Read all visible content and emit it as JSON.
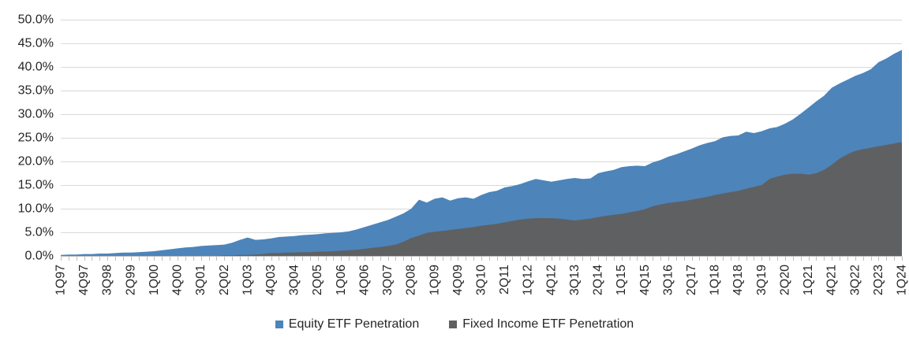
{
  "chart_data": {
    "type": "area",
    "stacking": "overlay",
    "title": "",
    "xlabel": "",
    "ylabel": "",
    "ylim": [
      0,
      50
    ],
    "ytick_step": 5,
    "y_tick_labels": [
      "0.0%",
      "5.0%",
      "10.0%",
      "15.0%",
      "20.0%",
      "25.0%",
      "30.0%",
      "35.0%",
      "40.0%",
      "45.0%",
      "50.0%"
    ],
    "x_label_every_n": 3,
    "grid": true,
    "legend_position": "bottom-center",
    "gridline_color": "#D9D9D9",
    "axis_line_color": "#BFBFBF",
    "tick_color": "#BFBFBF",
    "text_color": "#262626",
    "x": [
      "1Q97",
      "2Q97",
      "3Q97",
      "4Q97",
      "1Q98",
      "2Q98",
      "3Q98",
      "4Q98",
      "1Q99",
      "2Q99",
      "3Q99",
      "4Q99",
      "1Q00",
      "2Q00",
      "3Q00",
      "4Q00",
      "1Q01",
      "2Q01",
      "3Q01",
      "4Q01",
      "1Q02",
      "2Q02",
      "3Q02",
      "4Q02",
      "1Q03",
      "2Q03",
      "3Q03",
      "4Q03",
      "1Q04",
      "2Q04",
      "3Q04",
      "4Q04",
      "1Q05",
      "2Q05",
      "3Q05",
      "4Q05",
      "1Q06",
      "2Q06",
      "3Q06",
      "4Q06",
      "1Q07",
      "2Q07",
      "3Q07",
      "4Q07",
      "1Q08",
      "2Q08",
      "3Q08",
      "4Q08",
      "1Q09",
      "2Q09",
      "3Q09",
      "4Q09",
      "1Q10",
      "2Q10",
      "3Q10",
      "4Q10",
      "1Q11",
      "2Q11",
      "3Q11",
      "4Q11",
      "1Q12",
      "2Q12",
      "3Q12",
      "4Q12",
      "1Q13",
      "2Q13",
      "3Q13",
      "4Q13",
      "1Q14",
      "2Q14",
      "3Q14",
      "4Q14",
      "1Q15",
      "2Q15",
      "3Q15",
      "4Q15",
      "1Q16",
      "2Q16",
      "3Q16",
      "4Q16",
      "1Q17",
      "2Q17",
      "3Q17",
      "4Q17",
      "1Q18",
      "2Q18",
      "3Q18",
      "4Q18",
      "1Q19",
      "2Q19",
      "3Q19",
      "4Q19",
      "1Q20",
      "2Q20",
      "3Q20",
      "4Q20",
      "1Q21",
      "2Q21",
      "3Q21",
      "4Q21",
      "1Q22",
      "2Q22",
      "3Q22",
      "4Q22",
      "1Q23",
      "2Q23",
      "3Q23",
      "4Q23",
      "1Q24"
    ],
    "series": [
      {
        "name": "Equity ETF Penetration",
        "color": "#4D84BA",
        "values": [
          0.2,
          0.3,
          0.3,
          0.4,
          0.4,
          0.5,
          0.5,
          0.6,
          0.7,
          0.7,
          0.8,
          0.9,
          1.0,
          1.2,
          1.4,
          1.6,
          1.8,
          1.9,
          2.1,
          2.2,
          2.3,
          2.4,
          2.8,
          3.4,
          3.9,
          3.4,
          3.5,
          3.7,
          4.0,
          4.1,
          4.2,
          4.4,
          4.5,
          4.6,
          4.8,
          4.9,
          5.0,
          5.2,
          5.6,
          6.1,
          6.6,
          7.1,
          7.6,
          8.3,
          9.0,
          10.0,
          11.9,
          11.3,
          12.1,
          12.4,
          11.7,
          12.2,
          12.4,
          12.1,
          12.9,
          13.5,
          13.8,
          14.5,
          14.8,
          15.2,
          15.8,
          16.3,
          16.0,
          15.7,
          16.0,
          16.3,
          16.5,
          16.3,
          16.4,
          17.5,
          17.9,
          18.2,
          18.8,
          19.0,
          19.1,
          19.0,
          19.8,
          20.3,
          21.0,
          21.5,
          22.1,
          22.7,
          23.4,
          23.9,
          24.3,
          25.1,
          25.4,
          25.5,
          26.3,
          26.0,
          26.4,
          27.0,
          27.3,
          28.0,
          28.9,
          30.1,
          31.4,
          32.7,
          33.9,
          35.6,
          36.5,
          37.3,
          38.1,
          38.7,
          39.5,
          41.0,
          41.8,
          42.8,
          43.6
        ]
      },
      {
        "name": "Fixed Income ETF Penetration",
        "color": "#5F6062",
        "values": [
          0,
          0,
          0,
          0,
          0,
          0,
          0,
          0,
          0,
          0,
          0,
          0,
          0,
          0,
          0,
          0,
          0,
          0,
          0,
          0,
          0,
          0.1,
          0.1,
          0.2,
          0.2,
          0.3,
          0.4,
          0.6,
          0.6,
          0.7,
          0.7,
          0.8,
          0.8,
          0.9,
          0.9,
          1.0,
          1.1,
          1.2,
          1.3,
          1.5,
          1.7,
          1.9,
          2.1,
          2.4,
          3.0,
          3.8,
          4.3,
          4.9,
          5.1,
          5.3,
          5.5,
          5.7,
          5.9,
          6.1,
          6.4,
          6.6,
          6.8,
          7.1,
          7.4,
          7.7,
          7.9,
          8.0,
          8.0,
          8.0,
          7.9,
          7.7,
          7.5,
          7.7,
          7.9,
          8.2,
          8.5,
          8.7,
          8.9,
          9.2,
          9.5,
          9.9,
          10.5,
          10.9,
          11.2,
          11.4,
          11.6,
          11.9,
          12.2,
          12.5,
          12.9,
          13.2,
          13.5,
          13.8,
          14.2,
          14.6,
          15.0,
          16.3,
          16.8,
          17.2,
          17.4,
          17.4,
          17.2,
          17.5,
          18.2,
          19.3,
          20.6,
          21.5,
          22.2,
          22.6,
          22.9,
          23.2,
          23.5,
          23.8,
          24.1
        ]
      }
    ]
  }
}
